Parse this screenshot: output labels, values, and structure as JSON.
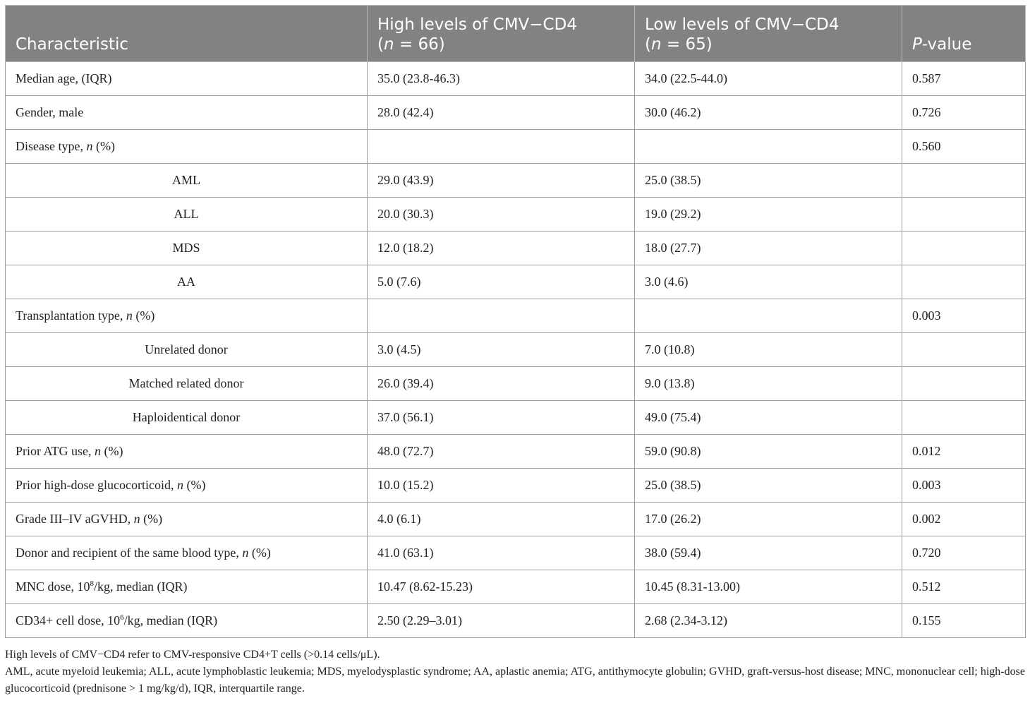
{
  "table": {
    "headers": {
      "characteristic": "Characteristic",
      "high_line1": "High levels of CMV−CD4",
      "high_line2_pre": " (",
      "high_line2_n": "n",
      "high_line2_post": " = 66)",
      "low_line1": "Low levels of CMV−CD4",
      "low_line2_pre": " (",
      "low_line2_n": "n",
      "low_line2_post": " = 65)",
      "p_italic": "P",
      "p_rest": "-value"
    },
    "rows": [
      {
        "label": "Median age, (IQR)",
        "high": "35.0 (23.8-46.3)",
        "low": "34.0 (22.5-44.0)",
        "p": "0.587"
      },
      {
        "label": "Gender, male",
        "high": "28.0 (42.4)",
        "low": "30.0 (46.2)",
        "p": "0.726"
      },
      {
        "label_pre": "Disease type, ",
        "label_n": "n",
        "label_post": " (%)",
        "high": "",
        "low": "",
        "p": "0.560"
      },
      {
        "label": "AML",
        "high": "29.0 (43.9)",
        "low": "25.0 (38.5)",
        "p": ""
      },
      {
        "label": "ALL",
        "high": "20.0 (30.3)",
        "low": "19.0 (29.2)",
        "p": ""
      },
      {
        "label": "MDS",
        "high": "12.0 (18.2)",
        "low": "18.0 (27.7)",
        "p": ""
      },
      {
        "label": "AA",
        "high": "5.0 (7.6)",
        "low": "3.0 (4.6)",
        "p": ""
      },
      {
        "label_pre": "Transplantation type, ",
        "label_n": "n",
        "label_post": " (%)",
        "high": "",
        "low": "",
        "p": "0.003"
      },
      {
        "label": "Unrelated donor",
        "high": "3.0 (4.5)",
        "low": "7.0 (10.8)",
        "p": ""
      },
      {
        "label": "Matched related donor",
        "high": "26.0 (39.4)",
        "low": "9.0 (13.8)",
        "p": ""
      },
      {
        "label": "Haploidentical donor",
        "high": "37.0 (56.1)",
        "low": "49.0 (75.4)",
        "p": ""
      },
      {
        "label_pre": "Prior ATG use, ",
        "label_n": "n",
        "label_post": " (%)",
        "high": "48.0 (72.7)",
        "low": "59.0 (90.8)",
        "p": "0.012"
      },
      {
        "label_pre": "Prior high-dose glucocorticoid, ",
        "label_n": "n",
        "label_post": " (%)",
        "high": "10.0 (15.2)",
        "low": "25.0 (38.5)",
        "p": "0.003"
      },
      {
        "label_pre": "Grade III–IV aGVHD, ",
        "label_n": "n",
        "label_post": " (%)",
        "high": "4.0 (6.1)",
        "low": "17.0 (26.2)",
        "p": "0.002"
      },
      {
        "label_pre": "Donor and recipient of the same blood type, ",
        "label_n": "n",
        "label_post": " (%)",
        "high": "41.0 (63.1)",
        "low": "38.0 (59.4)",
        "p": "0.720"
      },
      {
        "label_pre": "MNC dose, 10",
        "label_sup": "8",
        "label_post": "/kg, median (IQR)",
        "high": "10.47 (8.62-15.23)",
        "low": "10.45 (8.31-13.00)",
        "p": "0.512"
      },
      {
        "label_pre": "CD34+ cell dose, 10",
        "label_sup": "6",
        "label_post": "/kg, median (IQR)",
        "high": "2.50 (2.29–3.01)",
        "low": "2.68 (2.34-3.12)",
        "p": "0.155"
      }
    ]
  },
  "notes": [
    "High levels of CMV−CD4 refer to CMV-responsive CD4+T cells (>0.14 cells/μL).",
    "AML, acute myeloid leukemia; ALL, acute lymphoblastic leukemia; MDS, myelodysplastic syndrome; AA, aplastic anemia; ATG, antithymocyte globulin; GVHD, graft-versus-host disease; MNC, mononuclear cell; high-dose glucocorticoid (prednisone > 1 mg/kg/d), IQR, interquartile range."
  ]
}
